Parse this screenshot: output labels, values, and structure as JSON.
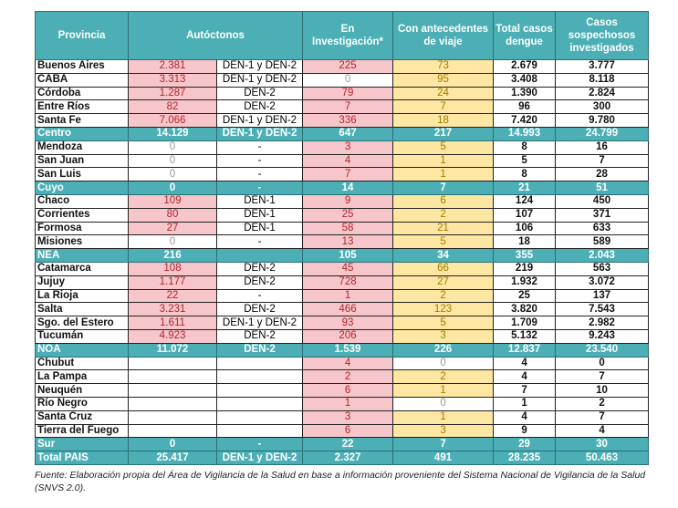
{
  "headers": [
    "Provincia",
    "Autóctonos",
    "En Investigación*",
    "Con antecedentes de viaje",
    "Total casos dengue",
    "Casos sospechosos investigados"
  ],
  "rows": [
    {
      "kind": "prov",
      "cells": [
        "Buenos Aires",
        "2.381",
        "DEN-1  y DEN-2",
        "225",
        "73",
        "2.679",
        "3.777"
      ]
    },
    {
      "kind": "prov",
      "cells": [
        "CABA",
        "3.313",
        "DEN-1  y DEN-2",
        "0",
        "95",
        "3.408",
        "8.118"
      ]
    },
    {
      "kind": "prov",
      "cells": [
        "Córdoba",
        "1.287",
        "DEN-2",
        "79",
        "24",
        "1.390",
        "2.824"
      ]
    },
    {
      "kind": "prov",
      "cells": [
        "Entre Ríos",
        "82",
        "DEN-2",
        "7",
        "7",
        "96",
        "300"
      ]
    },
    {
      "kind": "prov",
      "cells": [
        "Santa Fe",
        "7.066",
        "DEN-1 y DEN-2",
        "336",
        "18",
        "7.420",
        "9.780"
      ]
    },
    {
      "kind": "region",
      "cells": [
        "Centro",
        "14.129",
        "DEN-1 y DEN-2",
        "647",
        "217",
        "14.993",
        "24.799"
      ]
    },
    {
      "kind": "prov",
      "cells": [
        "Mendoza",
        "0",
        "-",
        "3",
        "5",
        "8",
        "16"
      ]
    },
    {
      "kind": "prov",
      "cells": [
        "San Juan",
        "0",
        "-",
        "4",
        "1",
        "5",
        "7"
      ]
    },
    {
      "kind": "prov",
      "cells": [
        "San Luis",
        "0",
        "-",
        "7",
        "1",
        "8",
        "28"
      ]
    },
    {
      "kind": "region",
      "cells": [
        "Cuyo",
        "0",
        "-",
        "14",
        "7",
        "21",
        "51"
      ]
    },
    {
      "kind": "prov",
      "cells": [
        "Chaco",
        "109",
        "DEN-1",
        "9",
        "6",
        "124",
        "450"
      ]
    },
    {
      "kind": "prov",
      "cells": [
        "Corrientes",
        "80",
        "DEN-1",
        "25",
        "2",
        "107",
        "371"
      ]
    },
    {
      "kind": "prov",
      "cells": [
        "Formosa",
        "27",
        "DEN-1",
        "58",
        "21",
        "106",
        "633"
      ]
    },
    {
      "kind": "prov",
      "cells": [
        "Misiones",
        "0",
        "-",
        "13",
        "5",
        "18",
        "589"
      ]
    },
    {
      "kind": "region",
      "cells": [
        "NEA",
        "216",
        "",
        "105",
        "34",
        "355",
        "2.043"
      ]
    },
    {
      "kind": "prov",
      "cells": [
        "Catamarca",
        "108",
        "DEN-2",
        "45",
        "66",
        "219",
        "563"
      ]
    },
    {
      "kind": "prov",
      "cells": [
        "Jujuy",
        "1.177",
        "DEN-2",
        "728",
        "27",
        "1.932",
        "3.072"
      ]
    },
    {
      "kind": "prov",
      "cells": [
        "La Rioja",
        "22",
        "-",
        "1",
        "2",
        "25",
        "137"
      ]
    },
    {
      "kind": "prov",
      "cells": [
        "Salta",
        "3.231",
        "DEN-2",
        "466",
        "123",
        "3.820",
        "7.543"
      ]
    },
    {
      "kind": "prov",
      "cells": [
        "Sgo. del Estero",
        "1.611",
        "DEN-1 y DEN-2",
        "93",
        "5",
        "1.709",
        "2.982"
      ]
    },
    {
      "kind": "prov",
      "cells": [
        "Tucumán",
        "4.923",
        "DEN-2",
        "206",
        "3",
        "5.132",
        "9.243"
      ]
    },
    {
      "kind": "region",
      "cells": [
        "NOA",
        "11.072",
        "DEN-2",
        "1.539",
        "226",
        "12.837",
        "23.540"
      ]
    },
    {
      "kind": "prov",
      "cells": [
        "Chubut",
        "",
        "",
        "4",
        "0",
        "4",
        "0"
      ]
    },
    {
      "kind": "prov",
      "cells": [
        "La Pampa",
        "",
        "",
        "2",
        "2",
        "4",
        "7"
      ]
    },
    {
      "kind": "prov",
      "cells": [
        "Neuquén",
        "",
        "",
        "6",
        "1",
        "7",
        "10"
      ]
    },
    {
      "kind": "prov",
      "cells": [
        "Río Negro",
        "",
        "",
        "1",
        "0",
        "1",
        "2"
      ]
    },
    {
      "kind": "prov",
      "cells": [
        "Santa Cruz",
        "",
        "",
        "3",
        "1",
        "4",
        "7"
      ]
    },
    {
      "kind": "prov",
      "cells": [
        "Tierra del Fuego",
        "",
        "",
        "6",
        "3",
        "9",
        "4"
      ]
    },
    {
      "kind": "region",
      "cells": [
        "Sur",
        "0",
        "-",
        "22",
        "7",
        "29",
        "30"
      ]
    },
    {
      "kind": "region",
      "cells": [
        "Total PAIS",
        "25.417",
        "DEN-1 y DEN-2",
        "2.327",
        "491",
        "28.235",
        "50.463"
      ]
    }
  ],
  "footnote": "Fuente: Elaboración propia del Área de Vigilancia de la Salud en base a información proveniente del Sistema Nacional de Vigilancia de la Salud (SNVS 2.0).",
  "colors": {
    "teal": "#4bafb5",
    "pink": "#f7c6cb",
    "yellow": "#fde7a2"
  }
}
